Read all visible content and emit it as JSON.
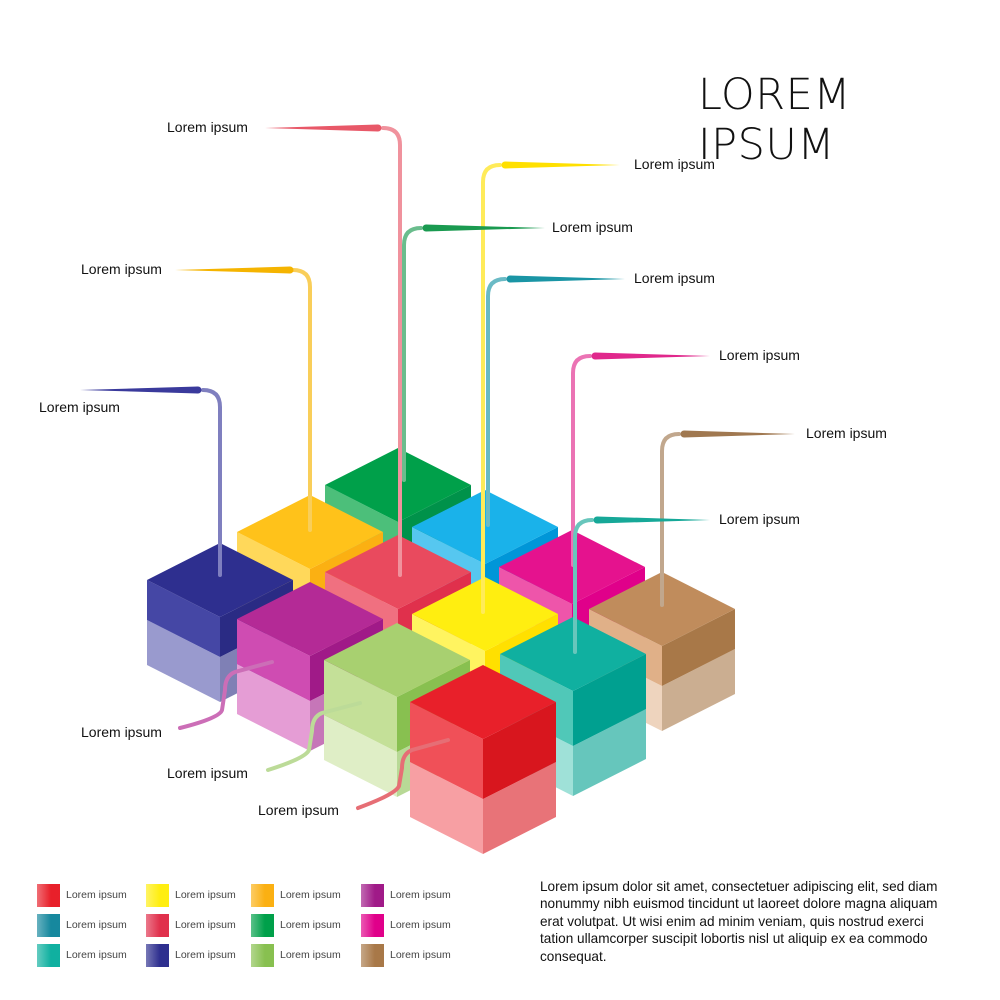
{
  "title": "LOREM IPSUM",
  "cubes": [
    {
      "name": "green",
      "top": "#00a04a",
      "side_l": "#4cbf7a",
      "side_r": "#00924a"
    },
    {
      "name": "orange",
      "top": "#ffc21a",
      "side_l": "#ffd85a",
      "side_r": "#fbb012"
    },
    {
      "name": "blue",
      "top": "#1ab2ea",
      "side_l": "#56c7f0",
      "side_r": "#0096d8"
    },
    {
      "name": "navy",
      "top": "#2e2f8f",
      "side_l": "#4547a5",
      "side_r": "#2a2b84"
    },
    {
      "name": "coral",
      "top": "#e94a5e",
      "side_l": "#f07080",
      "side_r": "#e0304c"
    },
    {
      "name": "magenta",
      "top": "#e5128e",
      "side_l": "#ee55aa",
      "side_r": "#e0008a"
    },
    {
      "name": "purple",
      "top": "#b42a96",
      "side_l": "#cf4cb2",
      "side_r": "#a01a88"
    },
    {
      "name": "yellow",
      "top": "#ffee10",
      "side_l": "#fff460",
      "side_r": "#ffe000"
    },
    {
      "name": "brown",
      "top": "#c08c5c",
      "side_l": "#e0b088",
      "side_r": "#a87848"
    },
    {
      "name": "lightgreen",
      "top": "#a8d070",
      "side_l": "#c4e098",
      "side_r": "#88c050"
    },
    {
      "name": "teal",
      "top": "#10b0a0",
      "side_l": "#50c8b8",
      "side_r": "#00a090"
    },
    {
      "name": "red",
      "top": "#e8202a",
      "side_l": "#f05058",
      "side_r": "#d8161e"
    }
  ],
  "callouts": [
    {
      "label": "Lorem ipsum",
      "color": "#e85868"
    },
    {
      "label": "Lorem ipsum",
      "color": "#f5b400"
    },
    {
      "label": "Lorem ipsum",
      "color": "#3a3a9c"
    },
    {
      "label": "Lorem ipsum",
      "color": "#ffe000"
    },
    {
      "label": "Lorem ipsum",
      "color": "#1a9a50"
    },
    {
      "label": "Lorem ipsum",
      "color": "#1a95a5"
    },
    {
      "label": "Lorem ipsum",
      "color": "#e0288c"
    },
    {
      "label": "Lorem ipsum",
      "color": "#a07850"
    },
    {
      "label": "Lorem ipsum",
      "color": "#16a898"
    },
    {
      "label": "Lorem ipsum",
      "color": "#b02090"
    },
    {
      "label": "Lorem ipsum",
      "color": "#98c860"
    },
    {
      "label": "Lorem ipsum",
      "color": "#d8202a"
    }
  ],
  "legend": [
    {
      "label": "Lorem ipsum",
      "color": "#e8202a"
    },
    {
      "label": "Lorem ipsum",
      "color": "#ffee10"
    },
    {
      "label": "Lorem ipsum",
      "color": "#fbb012"
    },
    {
      "label": "Lorem ipsum",
      "color": "#a01a88"
    },
    {
      "label": "Lorem ipsum",
      "color": "#16889e"
    },
    {
      "label": "Lorem ipsum",
      "color": "#e0304c"
    },
    {
      "label": "Lorem ipsum",
      "color": "#00a04a"
    },
    {
      "label": "Lorem ipsum",
      "color": "#e0008a"
    },
    {
      "label": "Lorem ipsum",
      "color": "#10b0a0"
    },
    {
      "label": "Lorem ipsum",
      "color": "#2e2f8f"
    },
    {
      "label": "Lorem ipsum",
      "color": "#88c050"
    },
    {
      "label": "Lorem ipsum",
      "color": "#a87848"
    }
  ],
  "paragraph": "Lorem ipsum dolor sit amet, consectetuer adipiscing elit, sed diam nonummy nibh euismod tincidunt ut laoreet dolore magna aliquam erat volutpat. Ut wisi enim ad minim veniam, quis nostrud exerci tation ullamcorper suscipit lobortis nisl ut aliquip ex ea commodo consequat."
}
